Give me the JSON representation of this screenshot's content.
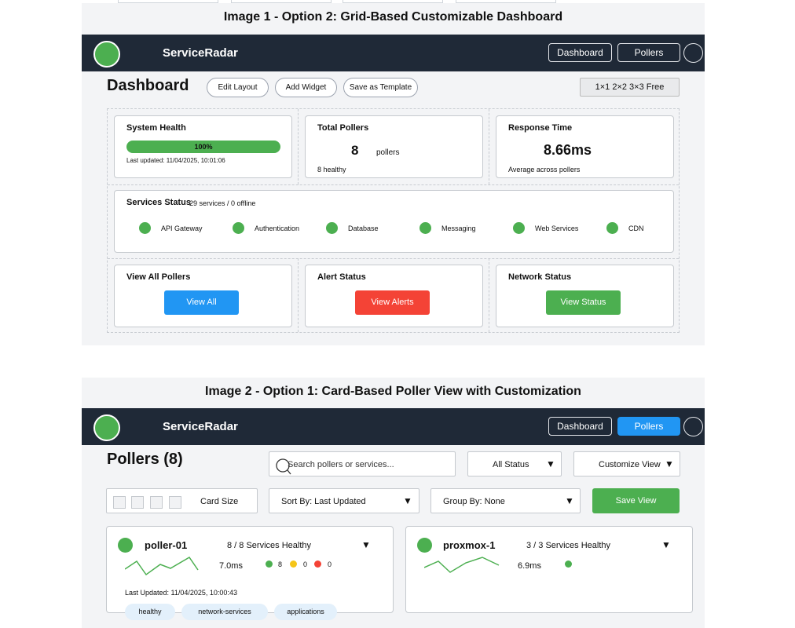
{
  "image1": {
    "caption": "Image 1 - Option 2: Grid-Based Customizable Dashboard",
    "navbar": {
      "brand": "ServiceRadar",
      "buttons": [
        "Dashboard",
        "Pollers"
      ]
    },
    "page_title": "Dashboard",
    "toolbar": {
      "edit_layout": "Edit Layout",
      "add_widget": "Add Widget",
      "save_template": "Save as Template",
      "grid_sizes": "1×1  2×2  3×3 Free"
    },
    "widgets": {
      "system_health": {
        "title": "System Health",
        "percent": "100%",
        "progress": 1.0,
        "updated": "Last updated: 11/04/2025, 10:01:06"
      },
      "total_pollers": {
        "title": "Total Pollers",
        "value": "8",
        "unit": "pollers",
        "note": "8 healthy"
      },
      "response_time": {
        "title": "Response Time",
        "value": "8.66ms",
        "note": "Average across pollers"
      },
      "services_status": {
        "title": "Services Status",
        "summary": "29 services / 0 offline",
        "services": [
          "API Gateway",
          "Authentication",
          "Database",
          "Messaging",
          "Web Services",
          "CDN"
        ]
      },
      "view_all_pollers": {
        "title": "View All Pollers",
        "button": "View All"
      },
      "alert_status": {
        "title": "Alert Status",
        "button": "View Alerts"
      },
      "network_status": {
        "title": "Network Status",
        "button": "View Status"
      }
    }
  },
  "image2": {
    "caption": "Image 2 - Option 1: Card-Based Poller View with Customization",
    "navbar": {
      "brand": "ServiceRadar",
      "buttons": [
        "Dashboard",
        "Pollers"
      ]
    },
    "page_title": "Pollers (8)",
    "search": {
      "placeholder": "Search pollers or services..."
    },
    "status_filter": "All Status",
    "customize": "Customize View",
    "card_size": "Card Size",
    "sort_by": "Sort By: Last Updated",
    "group_by": "Group By: None",
    "save_view": "Save View",
    "pollers": [
      {
        "name": "poller-01",
        "health": "8 / 8 Services Healthy",
        "response": "7.0ms",
        "counts": {
          "healthy": "8",
          "warning": "0",
          "error": "0"
        },
        "updated": "Last Updated: 11/04/2025, 10:00:43",
        "tags": [
          "healthy",
          "network-services",
          "applications"
        ]
      },
      {
        "name": "proxmox-1",
        "health": "3 / 3 Services Healthy",
        "response": "6.9ms"
      }
    ],
    "colors": {
      "healthy": "#4caf50",
      "warning": "#f5c518",
      "error": "#f44336"
    }
  },
  "colors": {
    "navbar": "#1f2937",
    "primary": "#2196f3",
    "success": "#4caf50",
    "danger": "#f44336"
  }
}
